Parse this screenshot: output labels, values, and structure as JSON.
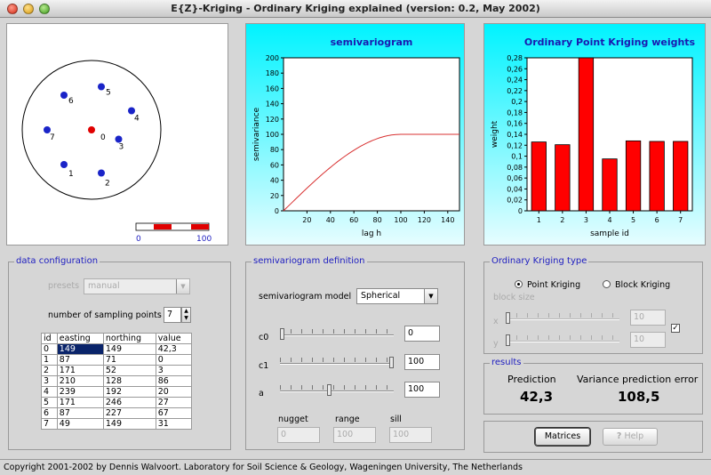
{
  "window": {
    "title": "E{Z}-Kriging - Ordinary Kriging explained (version: 0.2, May 2002)"
  },
  "map": {
    "legend": {
      "min": "0",
      "max": "100"
    },
    "points": [
      {
        "id": "0",
        "easting": 149,
        "northing": 149,
        "value": "42,3",
        "color": "#e00000"
      },
      {
        "id": "1",
        "easting": 87,
        "northing": 71,
        "value": "0",
        "color": "#1a24c8"
      },
      {
        "id": "2",
        "easting": 171,
        "northing": 52,
        "value": "3",
        "color": "#1a24c8"
      },
      {
        "id": "3",
        "easting": 210,
        "northing": 128,
        "value": "86",
        "color": "#1a24c8"
      },
      {
        "id": "4",
        "easting": 239,
        "northing": 192,
        "value": "20",
        "color": "#1a24c8"
      },
      {
        "id": "5",
        "easting": 171,
        "northing": 246,
        "value": "27",
        "color": "#1a24c8"
      },
      {
        "id": "6",
        "easting": 87,
        "northing": 227,
        "value": "67",
        "color": "#1a24c8"
      },
      {
        "id": "7",
        "easting": 49,
        "northing": 149,
        "value": "31",
        "color": "#1a24c8"
      }
    ]
  },
  "data_config": {
    "title": "data configuration",
    "presets_label": "presets",
    "presets_value": "manual",
    "num_points_label": "number of sampling points",
    "num_points_value": "7",
    "columns": [
      "id",
      "easting",
      "northing",
      "value"
    ],
    "rows": [
      [
        "0",
        "149",
        "149",
        "42,3"
      ],
      [
        "1",
        "87",
        "71",
        "0"
      ],
      [
        "2",
        "171",
        "52",
        "3"
      ],
      [
        "3",
        "210",
        "128",
        "86"
      ],
      [
        "4",
        "239",
        "192",
        "20"
      ],
      [
        "5",
        "171",
        "246",
        "27"
      ],
      [
        "6",
        "87",
        "227",
        "67"
      ],
      [
        "7",
        "49",
        "149",
        "31"
      ]
    ]
  },
  "semivariogram_def": {
    "title": "semivariogram definition",
    "model_label": "semivariogram model",
    "model_value": "Spherical",
    "c0_label": "c0",
    "c0_value": "0",
    "c0_fraction": 0.0,
    "c1_label": "c1",
    "c1_value": "100",
    "c1_fraction": 1.0,
    "a_label": "a",
    "a_value": "100",
    "a_fraction": 0.43,
    "nugget_label": "nugget",
    "nugget_value": "0",
    "range_label": "range",
    "range_value": "100",
    "sill_label": "sill",
    "sill_value": "100"
  },
  "kriging_type": {
    "title": "Ordinary Kriging type",
    "point_label": "Point Kriging",
    "block_label": "Block Kriging",
    "selected": "point",
    "block_size_label": "block size",
    "x_label": "x",
    "x_value": "10",
    "x_fraction": 0.0,
    "y_label": "y",
    "y_value": "10",
    "y_fraction": 0.0,
    "lock_checked": true,
    "check_mark": "✓"
  },
  "results": {
    "title": "results",
    "prediction_label": "Prediction",
    "prediction_value": "42,3",
    "variance_label": "Variance prediction error",
    "variance_value": "108,5"
  },
  "buttons": {
    "matrices": "Matrices",
    "help": "Help",
    "help_icon": "question-icon"
  },
  "status": {
    "text": "Copyright 2001-2002 by Dennis Walvoort. Laboratory for Soil Science & Geology, Wageningen University, The Netherlands"
  },
  "chart_data": [
    {
      "type": "line",
      "title": "semivariogram",
      "xlabel": "lag h",
      "ylabel": "semivariance",
      "xlim": [
        0,
        150
      ],
      "ylim": [
        0,
        200
      ],
      "xticks": [
        "20",
        "40",
        "60",
        "80",
        "100",
        "120",
        "140"
      ],
      "yticks": [
        "0",
        "20",
        "40",
        "60",
        "80",
        "100",
        "120",
        "140",
        "160",
        "180",
        "200"
      ],
      "model": "spherical",
      "nugget": 0,
      "sill": 100,
      "range": 100,
      "color": "#d83030"
    },
    {
      "type": "bar",
      "title": "Ordinary Point Kriging weights",
      "xlabel": "sample id",
      "ylabel": "weight",
      "ylim": [
        0,
        0.28
      ],
      "yticks": [
        "0",
        "0,02",
        "0,04",
        "0,06",
        "0,08",
        "0,1",
        "0,12",
        "0,14",
        "0,16",
        "0,18",
        "0,2",
        "0,22",
        "0,24",
        "0,26",
        "0,28"
      ],
      "categories": [
        "1",
        "2",
        "3",
        "4",
        "5",
        "6",
        "7"
      ],
      "values": [
        0.126,
        0.121,
        0.28,
        0.095,
        0.128,
        0.127,
        0.127
      ],
      "color": "#ff0000"
    }
  ]
}
